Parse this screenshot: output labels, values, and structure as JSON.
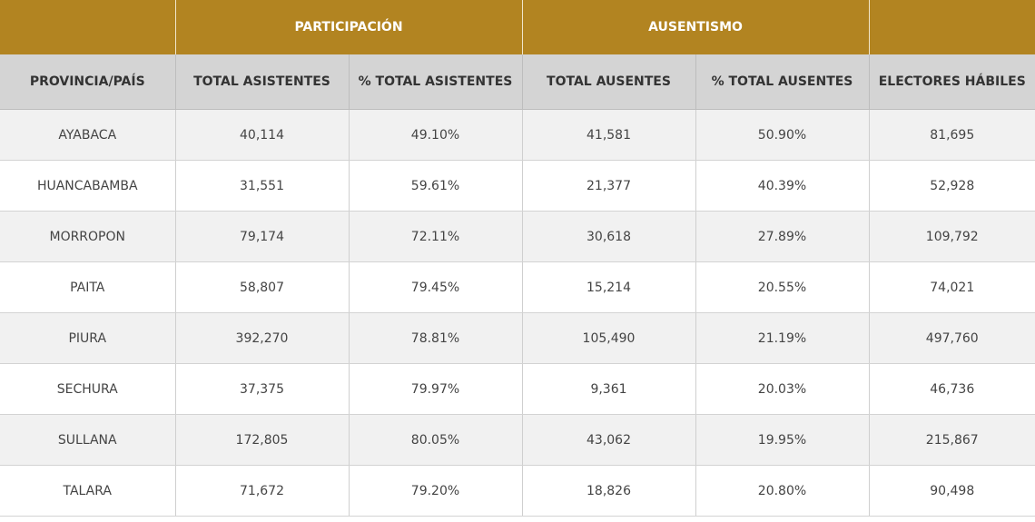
{
  "header": {
    "groups": [
      "",
      "PARTICIPACIÓN",
      "AUSENTISMO",
      ""
    ],
    "columns": [
      "PROVINCIA/PAÍS",
      "TOTAL ASISTENTES",
      "% TOTAL ASISTENTES",
      "TOTAL AUSENTES",
      "% TOTAL AUSENTES",
      "ELECTORES HÁBILES"
    ]
  },
  "rows": [
    [
      "AYABACA",
      "40,114",
      "49.10%",
      "41,581",
      "50.90%",
      "81,695"
    ],
    [
      "HUANCABAMBA",
      "31,551",
      "59.61%",
      "21,377",
      "40.39%",
      "52,928"
    ],
    [
      "MORROPON",
      "79,174",
      "72.11%",
      "30,618",
      "27.89%",
      "109,792"
    ],
    [
      "PAITA",
      "58,807",
      "79.45%",
      "15,214",
      "20.55%",
      "74,021"
    ],
    [
      "PIURA",
      "392,270",
      "78.81%",
      "105,490",
      "21.19%",
      "497,760"
    ],
    [
      "SECHURA",
      "37,375",
      "79.97%",
      "9,361",
      "20.03%",
      "46,736"
    ],
    [
      "SULLANA",
      "172,805",
      "80.05%",
      "43,062",
      "19.95%",
      "215,867"
    ],
    [
      "TALARA",
      "71,672",
      "79.20%",
      "18,826",
      "20.80%",
      "90,498"
    ]
  ],
  "colors": {
    "group_header": "#b28421",
    "column_header": "#d4d4d4",
    "row_alt": "#f1f1f1"
  }
}
